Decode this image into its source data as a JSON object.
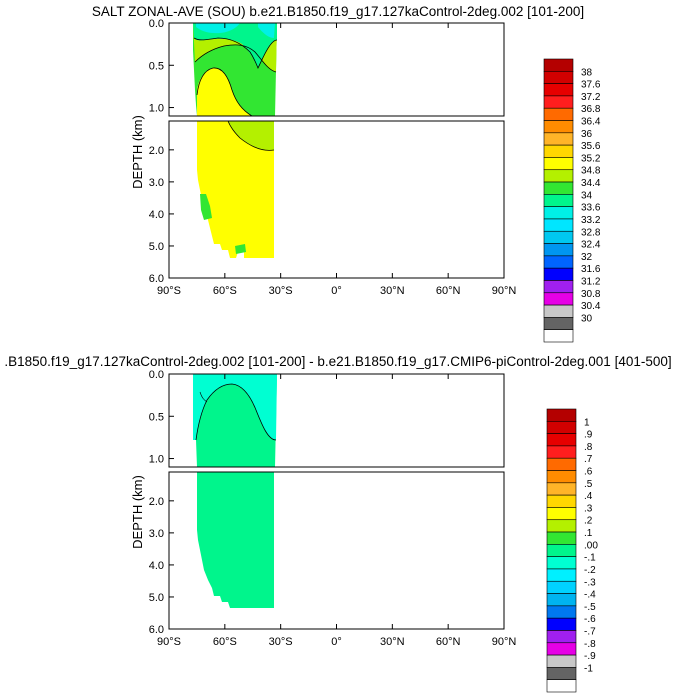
{
  "chart_data": [
    {
      "type": "heatmap",
      "title": "SALT ZONAL-AVE (SOU) b.e21.B1850.f19_g17.127kaControl-2deg.002 [101-200]",
      "ylabel": "DEPTH (km)",
      "xlim": [
        -90,
        90
      ],
      "xticks": [
        "90°S",
        "60°S",
        "30°S",
        "0°",
        "30°N",
        "60°N",
        "90°N"
      ],
      "yticks_upper": [
        "0.0",
        "0.5",
        "1.0"
      ],
      "yticks_lower": [
        "2.0",
        "3.0",
        "4.0",
        "5.0",
        "6.0"
      ],
      "upper_depth_range_km": [
        0,
        1.1
      ],
      "lower_depth_range_km": [
        1.1,
        6.0
      ],
      "ocean_lat_range": [
        -78,
        -34
      ],
      "colorbar_labels": [
        "38",
        "37.6",
        "37.2",
        "36.8",
        "36.4",
        "36",
        "35.6",
        "35.2",
        "34.8",
        "34.4",
        "34",
        "33.6",
        "33.2",
        "32.8",
        "32.4",
        "32",
        "31.6",
        "31.2",
        "30.8",
        "30.4",
        "30"
      ],
      "colorbar_colors": [
        "#b40000",
        "#d20000",
        "#e60000",
        "#ff1e1e",
        "#ff6a00",
        "#ff8c00",
        "#ffb428",
        "#ffd700",
        "#ffff00",
        "#b4f000",
        "#32e632",
        "#00f58c",
        "#00f0e6",
        "#00e6ff",
        "#00c8f0",
        "#0096f0",
        "#0064ff",
        "#0000ff",
        "#a020f0",
        "#e600e6",
        "#c8c8c8",
        "#646464",
        "#ffffff"
      ],
      "regions": [
        {
          "value_range": [
            34.0,
            34.4
          ],
          "desc_color": "#00f58c"
        },
        {
          "value_range": [
            34.4,
            34.8
          ],
          "desc_color": "#b4f000"
        },
        {
          "value_range": [
            34.8,
            35.2
          ],
          "desc_color": "#ffff00"
        }
      ]
    },
    {
      "type": "heatmap",
      "title": ".B1850.f19_g17.127kaControl-2deg.002 [101-200] - b.e21.B1850.f19_g17.CMIP6-piControl-2deg.001 [401-500]",
      "ylabel": "DEPTH (km)",
      "xlim": [
        -90,
        90
      ],
      "xticks": [
        "90°S",
        "60°S",
        "30°S",
        "0°",
        "30°N",
        "60°N",
        "90°N"
      ],
      "yticks_upper": [
        "0.0",
        "0.5",
        "1.0"
      ],
      "yticks_lower": [
        "2.0",
        "3.0",
        "4.0",
        "5.0",
        "6.0"
      ],
      "upper_depth_range_km": [
        0,
        1.1
      ],
      "lower_depth_range_km": [
        1.1,
        6.0
      ],
      "ocean_lat_range": [
        -78,
        -34
      ],
      "colorbar_labels": [
        "1",
        ".9",
        ".8",
        ".7",
        ".6",
        ".5",
        ".4",
        ".3",
        ".2",
        ".1",
        ".00",
        "-.1",
        "-.2",
        "-.3",
        "-.4",
        "-.5",
        "-.6",
        "-.7",
        "-.8",
        "-.9",
        "-1"
      ],
      "colorbar_colors": [
        "#b40000",
        "#d20000",
        "#e60000",
        "#ff1e1e",
        "#ff6a00",
        "#ff8c00",
        "#ffb428",
        "#ffd700",
        "#ffff00",
        "#b4f000",
        "#32e632",
        "#00f58c",
        "#00ffd2",
        "#00f0ff",
        "#00d2ff",
        "#00b4f0",
        "#0078f0",
        "#0000ff",
        "#a020f0",
        "#e600e6",
        "#c8c8c8",
        "#646464",
        "#ffffff"
      ],
      "regions": [
        {
          "value_range": [
            -0.1,
            0.0
          ],
          "desc_color": "#00ffd2"
        },
        {
          "value_range": [
            0.0,
            0.1
          ],
          "desc_color": "#00f58c"
        }
      ]
    }
  ]
}
